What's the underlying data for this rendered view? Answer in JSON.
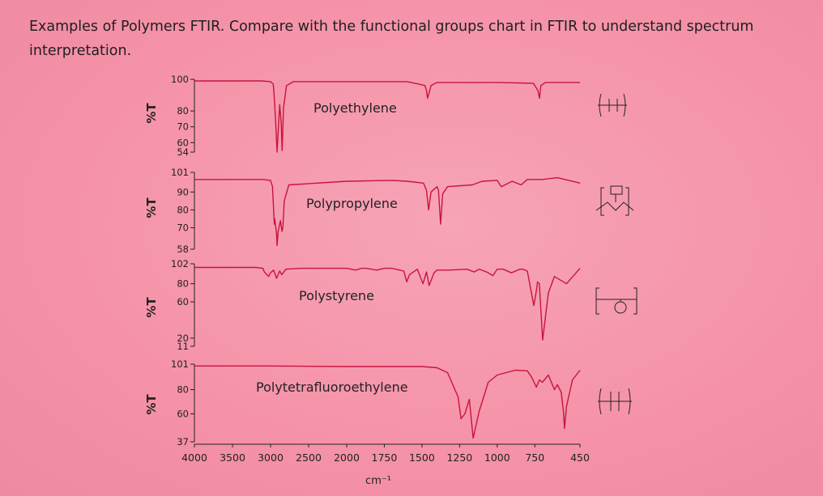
{
  "caption": "Examples of Polymers FTIR. Compare with the functional groups chart in FTIR to understand spectrum interpretation.",
  "colors": {
    "line": "#c8143c",
    "background": "#f592a8"
  },
  "chart_data": {
    "type": "line",
    "xlabel": "cm⁻¹",
    "x_ticks": [
      4000,
      3500,
      3000,
      2500,
      2000,
      1750,
      1500,
      1250,
      1000,
      750,
      450
    ],
    "x_tick_labels": [
      "4000",
      "3500",
      "3000",
      "2500",
      "2000",
      "1750",
      "1500",
      "1250",
      "1000",
      "750",
      "450"
    ],
    "panels": [
      {
        "name": "Polyethylene",
        "ylabel": "%T",
        "ylim": [
          54,
          100
        ],
        "y_ticks": [
          "100",
          "80",
          "70",
          "60",
          "54"
        ],
        "y_tick_values": [
          100,
          80,
          70,
          60,
          54
        ],
        "structure": "polyethylene-structure-icon",
        "x": [
          4000,
          3120,
          3000,
          2965,
          2955,
          2930,
          2915,
          2880,
          2860,
          2848,
          2830,
          2790,
          2700,
          2000,
          1600,
          1520,
          1480,
          1470,
          1463,
          1440,
          1400,
          1000,
          760,
          730,
          719,
          710,
          680,
          450
        ],
        "y": [
          99,
          99,
          98.5,
          97,
          92,
          70,
          54,
          84,
          72,
          55,
          82,
          96,
          98.5,
          98.5,
          98.5,
          97,
          96,
          93,
          88,
          96,
          98,
          98,
          97.5,
          93,
          88,
          96,
          98,
          98
        ]
      },
      {
        "name": "Polypropylene",
        "ylabel": "%T",
        "ylim": [
          58,
          101
        ],
        "y_ticks": [
          "101",
          "90",
          "80",
          "70",
          "58"
        ],
        "y_tick_values": [
          101,
          90,
          80,
          70,
          58
        ],
        "structure": "polypropylene-structure-icon",
        "x": [
          4000,
          3100,
          3000,
          2975,
          2955,
          2950,
          2945,
          2920,
          2915,
          2900,
          2870,
          2850,
          2838,
          2820,
          2760,
          2000,
          1700,
          1600,
          1490,
          1470,
          1456,
          1440,
          1400,
          1390,
          1376,
          1362,
          1330,
          1166,
          1100,
          1000,
          973,
          900,
          841,
          800,
          700,
          600,
          450
        ],
        "y": [
          97,
          97,
          96.5,
          93,
          76,
          72,
          75,
          66,
          60,
          68,
          74,
          68,
          70,
          85,
          94,
          96,
          96.5,
          96,
          95,
          91,
          80,
          90,
          93,
          91,
          72,
          89,
          93,
          94,
          96,
          96.5,
          93,
          96,
          94,
          97,
          97,
          98,
          95
        ]
      },
      {
        "name": "Polystyrene",
        "ylabel": "%T",
        "ylim": [
          11,
          102
        ],
        "y_ticks": [
          "102",
          "80",
          "60",
          "20",
          "11"
        ],
        "y_tick_values": [
          102,
          80,
          60,
          20,
          11
        ],
        "structure": "polystyrene-structure-icon",
        "x": [
          4000,
          3200,
          3100,
          3082,
          3060,
          3026,
          3001,
          2960,
          2921,
          2880,
          2851,
          2800,
          2600,
          2000,
          1942,
          1900,
          1870,
          1801,
          1750,
          1700,
          1620,
          1601,
          1583,
          1530,
          1493,
          1470,
          1452,
          1420,
          1400,
          1370,
          1320,
          1200,
          1154,
          1120,
          1070,
          1028,
          1000,
          960,
          906,
          850,
          830,
          800,
          757,
          740,
          732,
          720,
          698,
          660,
          620,
          540,
          450
        ],
        "y": [
          98,
          98,
          97,
          93,
          91,
          88,
          92,
          95,
          86,
          94,
          90,
          96,
          97,
          97,
          95,
          97,
          97,
          95,
          97,
          97,
          94,
          82,
          90,
          96,
          80,
          93,
          78,
          92,
          95,
          95,
          95,
          96,
          93,
          96,
          93,
          89,
          96,
          96,
          92,
          96,
          96,
          94,
          56,
          72,
          82,
          80,
          18,
          70,
          88,
          80,
          97
        ]
      },
      {
        "name": "Polytetrafluoroethylene",
        "ylabel": "%T",
        "ylim": [
          37,
          101
        ],
        "y_ticks": [
          "101",
          "80",
          "60",
          "37"
        ],
        "y_tick_values": [
          101,
          80,
          60,
          37
        ],
        "structure": "ptfe-structure-icon",
        "x": [
          4000,
          3000,
          2000,
          1500,
          1400,
          1330,
          1260,
          1240,
          1215,
          1185,
          1160,
          1120,
          1060,
          1000,
          880,
          800,
          770,
          740,
          719,
          700,
          660,
          640,
          620,
          600,
          575,
          560,
          553,
          540,
          500,
          450
        ],
        "y": [
          99.5,
          99.5,
          99,
          99,
          98,
          94,
          74,
          56,
          60,
          72,
          40,
          62,
          86,
          92,
          96,
          95.5,
          90,
          82,
          88,
          86,
          92,
          86,
          80,
          84,
          78,
          62,
          48,
          66,
          88,
          96
        ]
      }
    ]
  }
}
